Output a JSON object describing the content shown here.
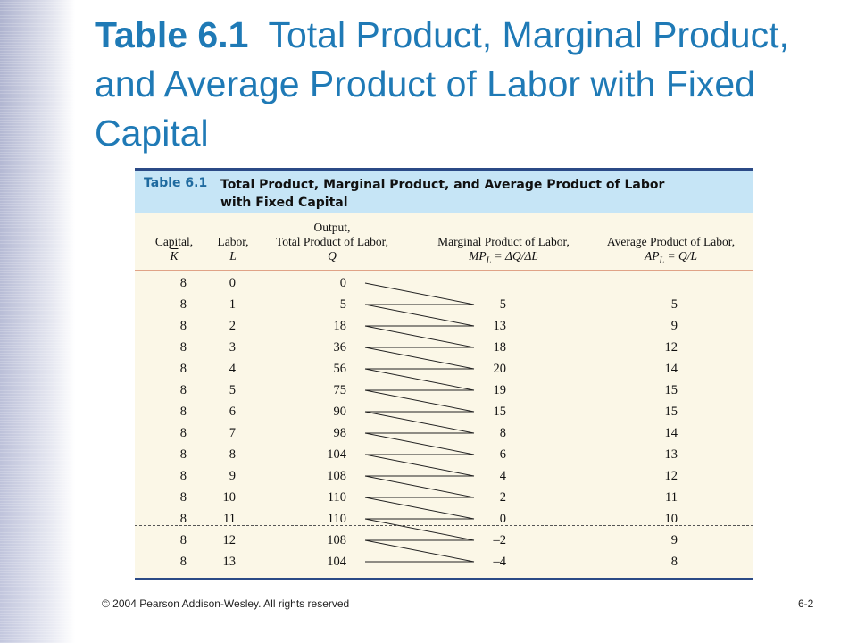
{
  "slide": {
    "title_number": "Table 6.1",
    "title_text": "Total Product, Marginal Product, and Average Product of Labor with Fixed Capital"
  },
  "table": {
    "label": "Table 6.1",
    "caption": "Total Product, Marginal Product, and Average Product of Labor with Fixed Capital",
    "headers": {
      "capital": [
        "Capital,",
        "K"
      ],
      "labor": [
        "Labor,",
        "L"
      ],
      "output": [
        "Output,",
        "Total Product of Labor,",
        "Q"
      ],
      "marginal": [
        "Marginal Product of Labor,",
        "MP",
        "L",
        " = ΔQ/ΔL"
      ],
      "average": [
        "Average Product of Labor,",
        "AP",
        "L",
        " = Q/L"
      ]
    },
    "rows": [
      {
        "k": "8",
        "l": "0",
        "q": "0",
        "mp": "",
        "ap": ""
      },
      {
        "k": "8",
        "l": "1",
        "q": "5",
        "mp": "5",
        "ap": "5"
      },
      {
        "k": "8",
        "l": "2",
        "q": "18",
        "mp": "13",
        "ap": "9"
      },
      {
        "k": "8",
        "l": "3",
        "q": "36",
        "mp": "18",
        "ap": "12"
      },
      {
        "k": "8",
        "l": "4",
        "q": "56",
        "mp": "20",
        "ap": "14"
      },
      {
        "k": "8",
        "l": "5",
        "q": "75",
        "mp": "19",
        "ap": "15"
      },
      {
        "k": "8",
        "l": "6",
        "q": "90",
        "mp": "15",
        "ap": "15"
      },
      {
        "k": "8",
        "l": "7",
        "q": "98",
        "mp": "8",
        "ap": "14"
      },
      {
        "k": "8",
        "l": "8",
        "q": "104",
        "mp": "6",
        "ap": "13"
      },
      {
        "k": "8",
        "l": "9",
        "q": "108",
        "mp": "4",
        "ap": "12"
      },
      {
        "k": "8",
        "l": "10",
        "q": "110",
        "mp": "2",
        "ap": "11"
      },
      {
        "k": "8",
        "l": "11",
        "q": "110",
        "mp": "0",
        "ap": "10"
      },
      {
        "k": "8",
        "l": "12",
        "q": "108",
        "mp": "–2",
        "ap": "9"
      },
      {
        "k": "8",
        "l": "13",
        "q": "104",
        "mp": "–4",
        "ap": "8"
      }
    ]
  },
  "footer": {
    "copyright": "© 2004 Pearson Addison-Wesley. All rights reserved",
    "page": "6-2"
  }
}
